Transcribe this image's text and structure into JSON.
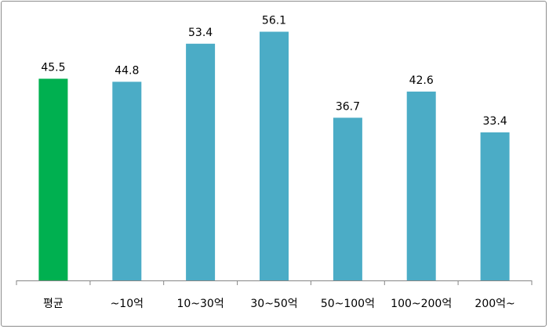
{
  "chart_data": {
    "type": "bar",
    "categories": [
      "평균",
      "~10억",
      "10~30억",
      "30~50억",
      "50~100억",
      "100~200억",
      "200억~"
    ],
    "values": [
      45.5,
      44.8,
      53.4,
      56.1,
      36.7,
      42.6,
      33.4
    ],
    "value_labels": [
      "45.5",
      "44.8",
      "53.4",
      "56.1",
      "36.7",
      "42.6",
      "33.4"
    ],
    "ylim": [
      0,
      60
    ],
    "grid": false,
    "legend": "none",
    "colors": {
      "highlight": "#00b050",
      "bar": "#4bacc6",
      "axis": "#868686"
    },
    "highlight_index": 0
  }
}
